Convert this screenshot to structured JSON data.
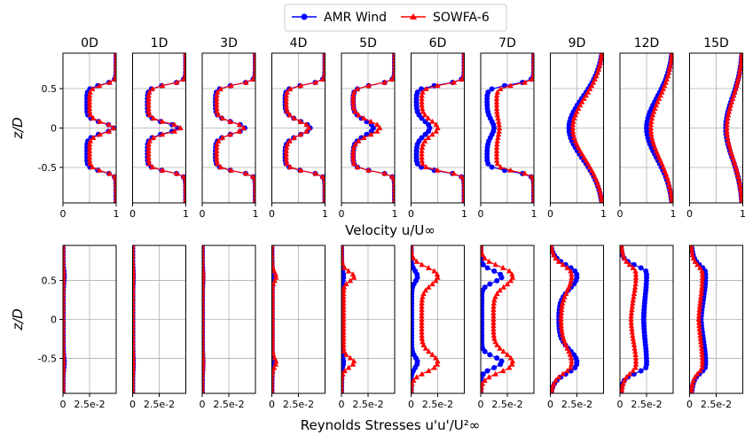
{
  "legend": {
    "entries": [
      {
        "label": "AMR Wind",
        "color": "#0000ff",
        "marker": "circle"
      },
      {
        "label": "SOWFA-6",
        "color": "#ff0000",
        "marker": "triangle"
      }
    ]
  },
  "chart_data": {
    "type": "line",
    "panel_titles": [
      "0D",
      "1D",
      "3D",
      "4D",
      "5D",
      "6D",
      "7D",
      "9D",
      "12D",
      "15D"
    ],
    "rows": [
      {
        "name": "velocity",
        "xlabel": "Velocity u/U∞",
        "ylabel": "z/D",
        "xlim": [
          0,
          1
        ],
        "ylim": [
          -0.95,
          0.95
        ],
        "xticks": [
          "0",
          "1"
        ],
        "yticks": [
          "-0.5",
          "0",
          "0.5"
        ],
        "profiles": [
          {
            "AMR Wind": {
              "min": 0.45,
              "center": 0.95,
              "width": 0.09
            },
            "SOWFA-6": {
              "min": 0.5,
              "center": 0.95,
              "width": 0.09
            }
          },
          {
            "AMR Wind": {
              "min": 0.28,
              "center": 0.85,
              "width": 0.09
            },
            "SOWFA-6": {
              "min": 0.3,
              "center": 0.9,
              "width": 0.09
            }
          },
          {
            "AMR Wind": {
              "min": 0.25,
              "center": 0.8,
              "width": 0.1
            },
            "SOWFA-6": {
              "min": 0.27,
              "center": 0.78,
              "width": 0.1
            }
          },
          {
            "AMR Wind": {
              "min": 0.25,
              "center": 0.72,
              "width": 0.12
            },
            "SOWFA-6": {
              "min": 0.27,
              "center": 0.7,
              "width": 0.12
            }
          },
          {
            "AMR Wind": {
              "min": 0.22,
              "center": 0.6,
              "width": 0.13
            },
            "SOWFA-6": {
              "min": 0.22,
              "center": 0.72,
              "width": 0.13
            }
          },
          {
            "AMR Wind": {
              "min": 0.1,
              "center": 0.35,
              "width": 0.13
            },
            "SOWFA-6": {
              "min": 0.2,
              "center": 0.5,
              "width": 0.13
            }
          },
          {
            "AMR Wind": {
              "min": 0.12,
              "center": 0.25,
              "width": 0.14
            },
            "SOWFA-6": {
              "min": 0.3,
              "center": 0.35,
              "width": 0.14
            }
          },
          {
            "AMR Wind": {
              "min": 0.35,
              "center": 0.35,
              "width": 0.0
            },
            "SOWFA-6": {
              "min": 0.42,
              "center": 0.42,
              "width": 0.0
            }
          },
          {
            "AMR Wind": {
              "min": 0.5,
              "center": 0.5,
              "width": 0.0
            },
            "SOWFA-6": {
              "min": 0.58,
              "center": 0.58,
              "width": 0.0
            }
          },
          {
            "AMR Wind": {
              "min": 0.68,
              "center": 0.68,
              "width": 0.0
            },
            "SOWFA-6": {
              "min": 0.7,
              "center": 0.7,
              "width": 0.0
            }
          }
        ]
      },
      {
        "name": "reynolds_stress",
        "xlabel": "Reynolds Stresses u'u'/U²∞",
        "ylabel": "z/D",
        "xlim": [
          0,
          0.05
        ],
        "ylim": [
          -0.95,
          0.95
        ],
        "xticks": [
          "0",
          "2.5e-2"
        ],
        "yticks": [
          "-0.5",
          "0",
          "0.5"
        ],
        "profiles": [
          {
            "AMR Wind": {
              "peak": 0.0012,
              "base": 0.0002,
              "spread": 0.1
            },
            "SOWFA-6": {
              "peak": 0.0006,
              "base": 0.0001,
              "spread": 0.1
            }
          },
          {
            "AMR Wind": {
              "peak": 0.0006,
              "base": 0.0001,
              "spread": 0.1
            },
            "SOWFA-6": {
              "peak": 0.0006,
              "base": 0.0002,
              "spread": 0.1
            }
          },
          {
            "AMR Wind": {
              "peak": 0.0006,
              "base": 0.0001,
              "spread": 0.1
            },
            "SOWFA-6": {
              "peak": 0.0008,
              "base": 0.0002,
              "spread": 0.1
            }
          },
          {
            "AMR Wind": {
              "peak": 0.001,
              "base": 0.0002,
              "spread": 0.08
            },
            "SOWFA-6": {
              "peak": 0.004,
              "base": 0.0005,
              "spread": 0.08
            }
          },
          {
            "AMR Wind": {
              "peak": 0.002,
              "base": 0.0003,
              "spread": 0.08
            },
            "SOWFA-6": {
              "peak": 0.012,
              "base": 0.002,
              "spread": 0.08
            }
          },
          {
            "AMR Wind": {
              "peak": 0.006,
              "base": 0.0005,
              "spread": 0.1
            },
            "SOWFA-6": {
              "peak": 0.025,
              "base": 0.01,
              "spread": 0.15
            }
          },
          {
            "AMR Wind": {
              "peak": 0.02,
              "base": 0.001,
              "spread": 0.1
            },
            "SOWFA-6": {
              "peak": 0.03,
              "base": 0.012,
              "spread": 0.17
            }
          },
          {
            "AMR Wind": {
              "peak": 0.025,
              "base": 0.008,
              "spread": 0.22
            },
            "SOWFA-6": {
              "peak": 0.02,
              "base": 0.01,
              "spread": 0.25
            }
          },
          {
            "AMR Wind": {
              "peak": 0.025,
              "base": 0.022,
              "spread": 0.35
            },
            "SOWFA-6": {
              "peak": 0.015,
              "base": 0.01,
              "spread": 0.35
            }
          },
          {
            "AMR Wind": {
              "peak": 0.015,
              "base": 0.01,
              "spread": 0.4
            },
            "SOWFA-6": {
              "peak": 0.012,
              "base": 0.008,
              "spread": 0.4
            }
          }
        ]
      }
    ]
  }
}
